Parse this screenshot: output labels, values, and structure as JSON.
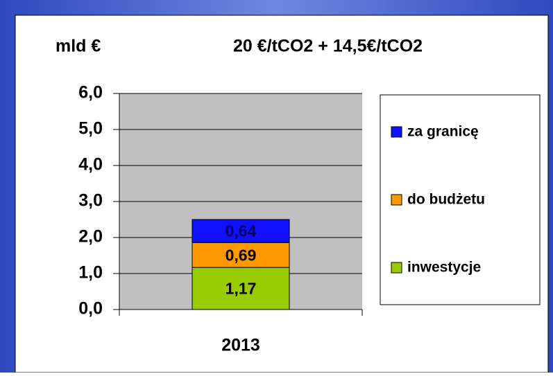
{
  "chart_data": {
    "type": "stacked_bar",
    "title": "20 €/tCO2 + 14,5€/tCO2",
    "y_axis_label": "mld €",
    "categories": [
      "2013"
    ],
    "series": [
      {
        "name": "inwestycje",
        "color": "#99cc00",
        "values": [
          1.17
        ],
        "value_labels": [
          "1,17"
        ]
      },
      {
        "name": "do budżetu",
        "color": "#ff9900",
        "values": [
          0.69
        ],
        "value_labels": [
          "0,69"
        ]
      },
      {
        "name": "za granicę",
        "color": "#1010ff",
        "values": [
          0.64
        ],
        "value_labels": [
          "0,64"
        ]
      }
    ],
    "ylim": [
      0,
      6
    ],
    "yticks": [
      {
        "value": 0,
        "label": "0,0"
      },
      {
        "value": 1,
        "label": "1,0"
      },
      {
        "value": 2,
        "label": "2,0"
      },
      {
        "value": 3,
        "label": "3,0"
      },
      {
        "value": 4,
        "label": "4,0"
      },
      {
        "value": 5,
        "label": "5,0"
      },
      {
        "value": 6,
        "label": "6,0"
      }
    ],
    "grid": true,
    "legend": "right"
  }
}
